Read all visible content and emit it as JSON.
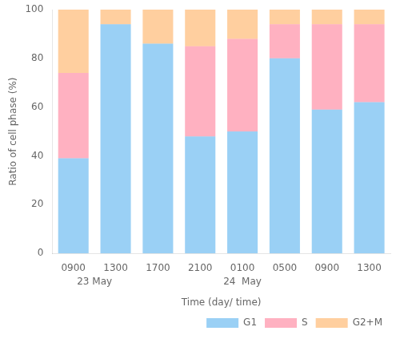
{
  "chart_data": {
    "type": "bar",
    "stacked": true,
    "categories": [
      "0900",
      "1300",
      "1700",
      "2100",
      "0100",
      "0500",
      "0900",
      "1300"
    ],
    "series": [
      {
        "name": "G1",
        "values": [
          39,
          94,
          86,
          48,
          50,
          80,
          59,
          62
        ]
      },
      {
        "name": "S",
        "values": [
          35,
          0,
          0,
          37,
          38,
          14,
          35,
          32
        ]
      },
      {
        "name": "G2+M",
        "values": [
          26,
          6,
          14,
          15,
          12,
          6,
          6,
          6
        ]
      }
    ],
    "x_label": "Time (day/ time)",
    "y_label": "Ratio of cell phase (%)",
    "ylim": [
      0,
      100
    ],
    "yticks": [
      0,
      20,
      40,
      60,
      80,
      100
    ],
    "grid": false,
    "legend": "lower right",
    "annotations": [
      {
        "text": "23 May",
        "x": 0.5
      },
      {
        "text": "24  May",
        "x": 4.0
      }
    ]
  }
}
